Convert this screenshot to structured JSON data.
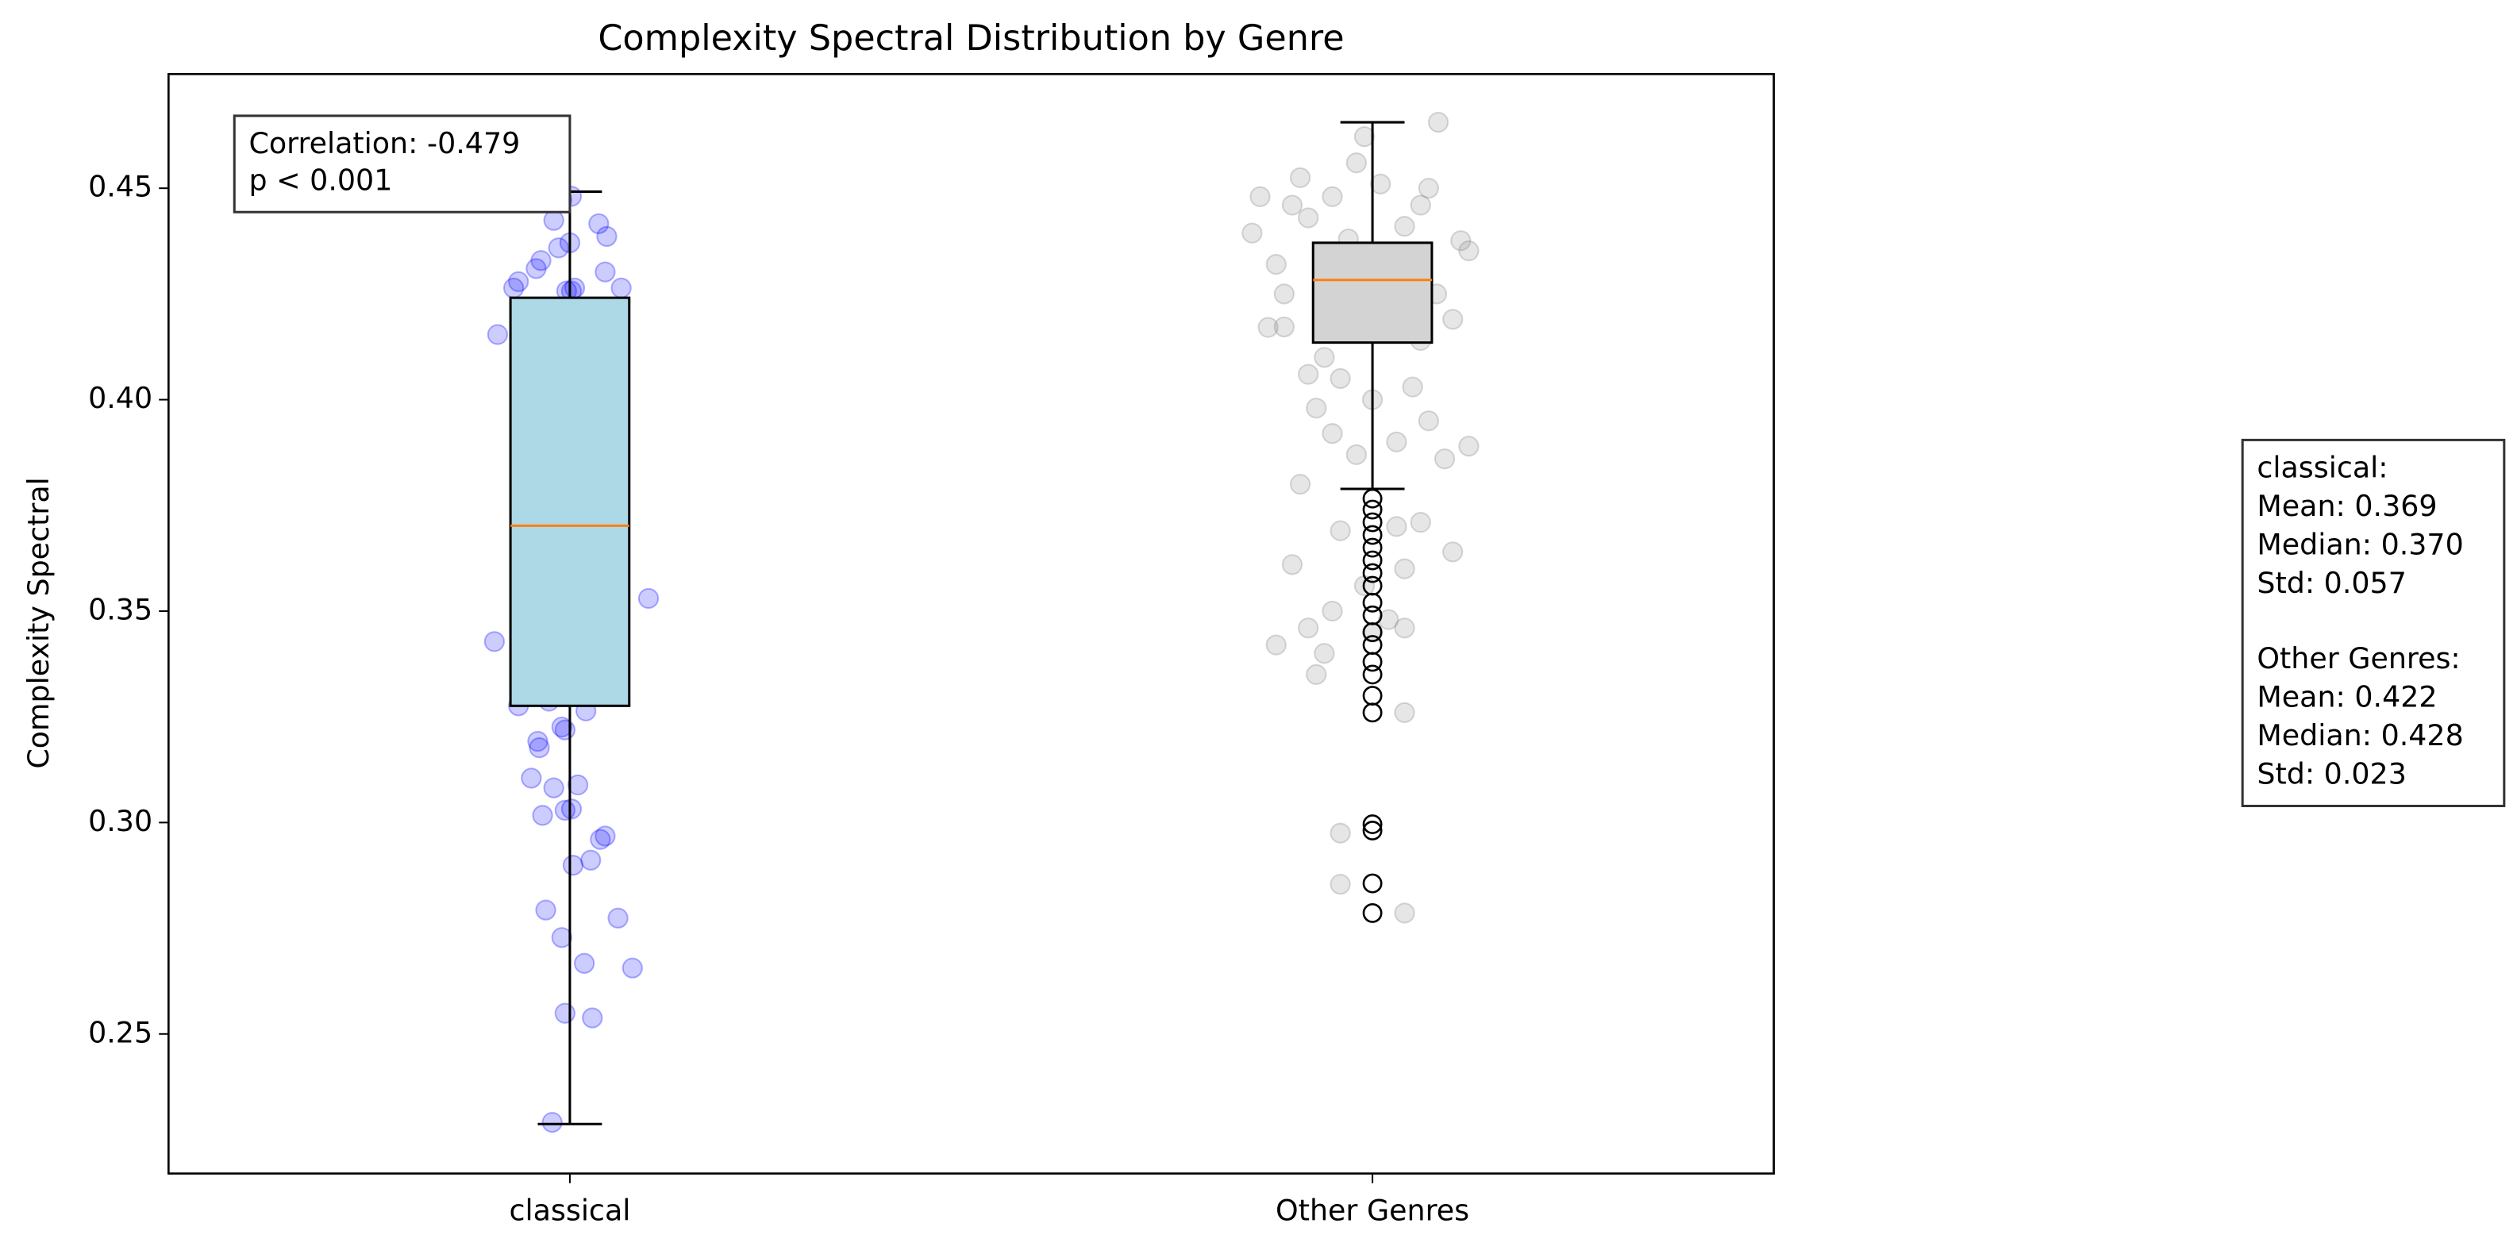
{
  "chart_data": {
    "type": "box",
    "title": "Complexity Spectral Distribution by Genre",
    "ylabel": "Complexity Spectral",
    "ylim": [
      0.217,
      0.477
    ],
    "xlim": [
      -0.5,
      1.5
    ],
    "yticks": [
      0.25,
      {
        "value": 0.3,
        "label": "0.30"
      },
      0.35,
      {
        "value": 0.4,
        "label": "0.40"
      },
      0.45
    ],
    "series": [
      {
        "name": "classical",
        "color": "#add8e6",
        "point_color": "#0000ff",
        "whislo": 0.2287,
        "q1": 0.3276,
        "med": 0.3702,
        "q3": 0.4241,
        "whishi": 0.4492,
        "fliers": [],
        "points": {
          "x": [
            -0.024,
            -0.01,
            0.002,
            -0.02,
            0.036,
            0.046,
            0,
            -0.014,
            -0.036,
            0.044,
            0.064,
            -0.042,
            -0.064,
            -0.07,
            0.002,
            0.006,
            -0.004,
            -0.09,
            0.098,
            -0.094,
            -0.026,
            0.02,
            -0.064,
            -0.006,
            -0.01,
            -0.04,
            -0.038,
            -0.048,
            -0.02,
            0.01,
            -0.034,
            -0.006,
            0.002,
            0.044,
            0.038,
            0.026,
            0.004,
            -0.03,
            0.06,
            -0.01,
            0.018,
            0.078,
            -0.006,
            0.028,
            -0.022
          ],
          "y": [
            0.4492,
            0.4473,
            0.4481,
            0.4424,
            0.4416,
            0.4386,
            0.4371,
            0.4359,
            0.4329,
            0.4302,
            0.4264,
            0.431,
            0.4279,
            0.4264,
            0.4257,
            0.4264,
            0.4257,
            0.4154,
            0.353,
            0.3428,
            0.3287,
            0.3264,
            0.3276,
            0.3219,
            0.3226,
            0.3192,
            0.3177,
            0.3105,
            0.3082,
            0.3089,
            0.3017,
            0.3029,
            0.3032,
            0.2968,
            0.296,
            0.2911,
            0.2899,
            0.2793,
            0.2774,
            0.2728,
            0.2667,
            0.2656,
            0.2549,
            0.2538,
            0.2291
          ]
        }
      },
      {
        "name": "Other Genres",
        "color": "#d3d3d3",
        "point_color": "#808080",
        "whislo": 0.3789,
        "q1": 0.4135,
        "med": 0.4283,
        "q3": 0.4371,
        "whishi": 0.4656,
        "fliers": [
          0.3766,
          0.374,
          0.371,
          0.368,
          0.365,
          0.362,
          0.359,
          0.356,
          0.352,
          0.349,
          0.345,
          0.342,
          0.338,
          0.335,
          0.33,
          0.326,
          0.2996,
          0.2981,
          0.2856,
          0.2786
        ],
        "points": {
          "x": [
            1.082,
            0.99,
            0.85,
            0.91,
            0.95,
            1.06,
            1.11,
            1.12,
            0.92,
            0.97,
            0.88,
            1.04,
            1.08,
            0.89,
            0.87,
            1.02,
            0.94,
            0.96,
            1.05,
            0.93,
            1.0,
            1.07,
            0.95,
            1.03,
            1.12,
            0.98,
            1.09,
            0.91,
            0.96,
            1.03,
            1.06,
            1.1,
            0.9,
            0.99,
            1.04,
            0.95,
            0.92,
            1.02,
            0.88,
            0.94,
            1.0,
            1.04,
            0.93,
            1.04,
            0.96,
            0.96,
            1.04,
            0.86,
            0.9,
            1.01,
            1.07,
            0.98,
            1.02,
            0.94,
            1.06,
            0.92,
            1.1,
            0.97,
            0.89
          ],
          "y": [
            0.4656,
            0.4622,
            0.4394,
            0.4525,
            0.448,
            0.446,
            0.4376,
            0.4352,
            0.443,
            0.43,
            0.432,
            0.441,
            0.425,
            0.4172,
            0.4171,
            0.42,
            0.41,
            0.405,
            0.403,
            0.398,
            0.4,
            0.395,
            0.392,
            0.39,
            0.389,
            0.387,
            0.386,
            0.38,
            0.369,
            0.37,
            0.371,
            0.364,
            0.361,
            0.356,
            0.36,
            0.35,
            0.346,
            0.348,
            0.342,
            0.34,
            0.345,
            0.346,
            0.335,
            0.326,
            0.2975,
            0.2854,
            0.2786,
            0.448,
            0.446,
            0.451,
            0.45,
            0.456,
            0.433,
            0.427,
            0.414,
            0.406,
            0.419,
            0.438,
            0.425
          ]
        }
      }
    ],
    "annotations": {
      "correlation": [
        "Correlation: -0.479",
        "p < 0.001"
      ],
      "stats": [
        [
          "classical:",
          "Mean: 0.369",
          "Median: 0.370",
          "Std: 0.057"
        ],
        [
          "Other Genres:",
          "Mean: 0.422",
          "Median: 0.428",
          "Std: 0.023"
        ]
      ]
    }
  }
}
